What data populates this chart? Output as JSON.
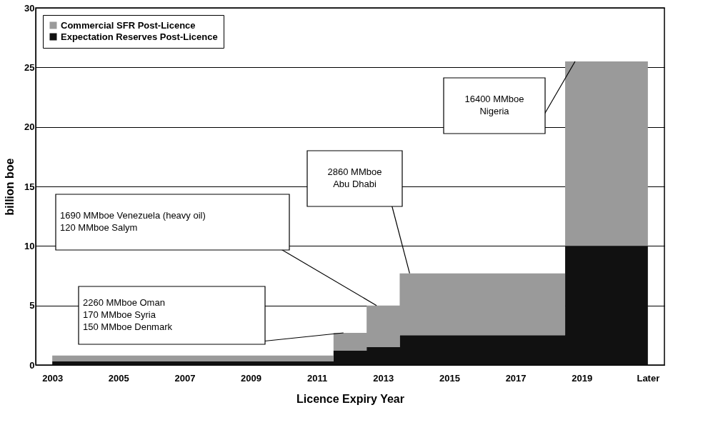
{
  "chart_data": {
    "type": "area",
    "stacked": true,
    "xlabel": "Licence Expiry Year",
    "ylabel": "billion boe",
    "x": [
      2003,
      2004,
      2005,
      2006,
      2007,
      2008,
      2009,
      2010,
      2011,
      2012,
      2013,
      2014,
      2015,
      2016,
      2017,
      2018,
      2019,
      2020,
      2021
    ],
    "xlim": [
      2002.5,
      2021.5
    ],
    "xticks": [
      2003,
      2005,
      2007,
      2009,
      2011,
      2013,
      2015,
      2017,
      2019,
      {
        "value": 2021,
        "label": "Later"
      }
    ],
    "series": [
      {
        "name": "Expectation Reserves Post-Licence",
        "color": "#111111",
        "values": [
          0.3,
          0.3,
          0.3,
          0.3,
          0.3,
          0.3,
          0.3,
          0.3,
          0.3,
          1.2,
          1.5,
          2.5,
          2.5,
          2.5,
          2.5,
          2.5,
          10,
          10,
          10
        ]
      },
      {
        "name": "Commercial SFR Post-Licence",
        "color": "#9a9a9a",
        "values": [
          0.5,
          0.5,
          0.5,
          0.5,
          0.5,
          0.5,
          0.5,
          0.5,
          0.5,
          1.5,
          3.5,
          5.2,
          5.2,
          5.2,
          5.2,
          5.2,
          15.5,
          15.5,
          15.5
        ]
      }
    ],
    "ylim": [
      0,
      30
    ],
    "yticks": [
      0,
      5,
      10,
      15,
      20,
      25,
      30
    ],
    "grid": "y",
    "legend": "top left",
    "annotations": [
      "2260 MMboe Oman\n  170 MMboe Syria\n  150 MMboe Denmark",
      "1690 MMboe Venezuela (heavy oil)\n  120 MMboe Salym",
      "2860 MMboe\nAbu Dhabi",
      "16400 MMboe\nNigeria"
    ]
  }
}
